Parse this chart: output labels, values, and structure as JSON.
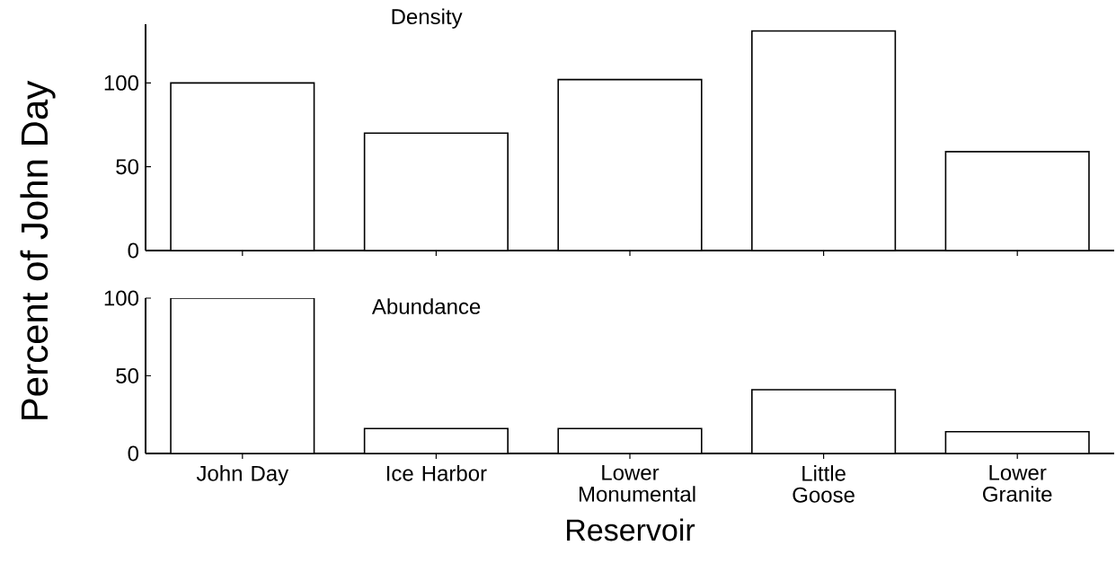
{
  "chart_data": [
    {
      "type": "bar",
      "title": "Density",
      "ylabel": "Percent of John Day",
      "categories": [
        null,
        null,
        null,
        null,
        null
      ],
      "values": [
        100,
        70,
        102,
        131,
        59
      ],
      "color": "#ffffff",
      "ylim": [
        0,
        135
      ],
      "yticks": [
        0,
        50,
        100
      ],
      "tick_labels": "y"
    },
    {
      "type": "bar",
      "title": "Abundance",
      "xlabel": "Reservoir",
      "categories": [
        "John Day",
        "Ice Harbor",
        "Lower Monumental",
        "Little Goose",
        "Lower Granite"
      ],
      "values": [
        100,
        16,
        16,
        41,
        14
      ],
      "color": "#ffffff",
      "ylim": [
        0,
        100
      ],
      "yticks": [
        0,
        50,
        100
      ]
    }
  ]
}
